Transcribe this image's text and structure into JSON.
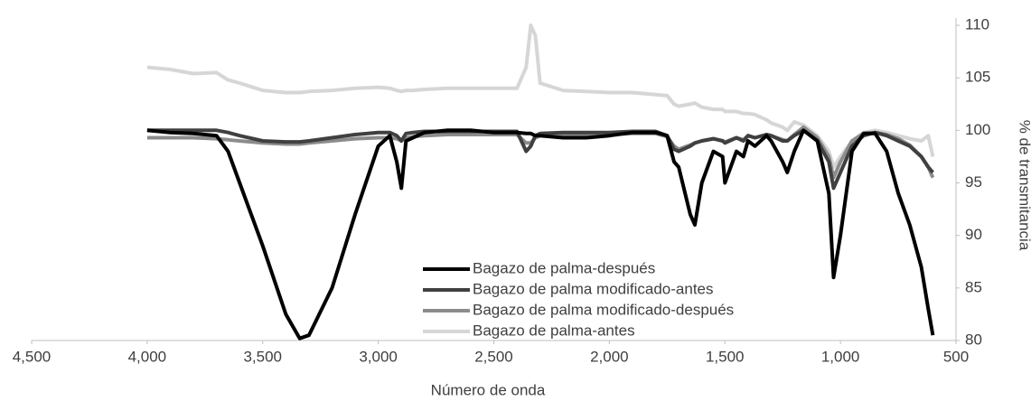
{
  "chart_data": {
    "type": "line",
    "x_label": "Número de onda",
    "y_label": "% de transmitancia",
    "x": [
      4000,
      3900,
      3800,
      3700,
      3650,
      3600,
      3500,
      3400,
      3340,
      3300,
      3200,
      3100,
      3000,
      2950,
      2920,
      2900,
      2880,
      2850,
      2800,
      2700,
      2600,
      2500,
      2400,
      2360,
      2340,
      2320,
      2300,
      2200,
      2100,
      2000,
      1900,
      1800,
      1750,
      1720,
      1700,
      1650,
      1630,
      1600,
      1550,
      1510,
      1500,
      1450,
      1420,
      1400,
      1370,
      1320,
      1300,
      1250,
      1230,
      1200,
      1160,
      1100,
      1050,
      1030,
      1000,
      950,
      900,
      850,
      800,
      750,
      700,
      650,
      620,
      600
    ],
    "series": [
      {
        "name": "Bagazo de palma-después",
        "color": "#000000",
        "values": [
          100,
          99.8,
          99.7,
          99.5,
          98,
          95,
          89,
          82.5,
          80.2,
          80.5,
          85,
          92,
          98.5,
          99.5,
          97,
          94.5,
          99,
          99.3,
          99.8,
          100,
          100,
          99.8,
          99.8,
          99.7,
          99.7,
          99.5,
          99.5,
          99.3,
          99.3,
          99.5,
          99.8,
          99.8,
          99.5,
          97,
          96.5,
          92,
          91,
          95,
          98,
          97.5,
          95,
          98,
          97.5,
          99,
          98.5,
          99.5,
          99,
          97,
          96,
          98,
          100,
          99,
          94,
          86,
          90,
          98,
          99.7,
          99.7,
          98,
          94,
          91,
          87,
          83,
          80.5
        ]
      },
      {
        "name": "Bagazo de palma modificado-antes",
        "color": "#404040",
        "values": [
          100,
          100,
          100,
          100,
          99.8,
          99.5,
          99,
          98.9,
          98.9,
          99,
          99.3,
          99.6,
          99.8,
          99.8,
          99.5,
          99,
          99.7,
          99.8,
          99.9,
          99.9,
          99.9,
          99.9,
          99.9,
          98,
          98.5,
          99.5,
          99.7,
          99.8,
          99.8,
          99.8,
          99.9,
          99.9,
          99.5,
          98.2,
          98,
          98.5,
          98.8,
          99,
          99.2,
          99,
          98.8,
          99.3,
          99,
          99.5,
          99.3,
          99.6,
          99.5,
          99,
          99,
          99.5,
          100,
          99,
          97,
          94.5,
          96,
          98.5,
          99.5,
          99.8,
          99.5,
          99,
          98.5,
          97.5,
          96.5,
          96
        ]
      },
      {
        "name": "Bagazo de palma modificado-después",
        "color": "#8c8c8c",
        "values": [
          99.3,
          99.3,
          99.3,
          99.2,
          99.1,
          99,
          98.8,
          98.7,
          98.7,
          98.8,
          99,
          99.2,
          99.3,
          99.3,
          99.2,
          99,
          99.3,
          99.4,
          99.5,
          99.6,
          99.6,
          99.6,
          99.6,
          98.8,
          98.8,
          99.3,
          99.5,
          99.5,
          99.5,
          99.6,
          99.7,
          99.7,
          99.4,
          98.5,
          98.2,
          98.6,
          98.8,
          99,
          99.2,
          99,
          98.9,
          99.3,
          99.1,
          99.5,
          99.3,
          99.6,
          99.5,
          99.1,
          99,
          99.6,
          100.3,
          99.3,
          97.5,
          95.5,
          97,
          99,
          99.7,
          99.8,
          99.6,
          99.2,
          98.6,
          97.5,
          96.5,
          95.5
        ]
      },
      {
        "name": "Bagazo de palma-antes",
        "color": "#d6d6d6",
        "values": [
          106,
          105.8,
          105.4,
          105.5,
          104.8,
          104.5,
          103.8,
          103.6,
          103.6,
          103.7,
          103.8,
          104,
          104.1,
          104,
          103.8,
          103.7,
          103.8,
          103.8,
          103.9,
          104,
          104,
          104,
          104,
          106,
          110,
          109,
          104.5,
          103.8,
          103.7,
          103.6,
          103.6,
          103.4,
          103.3,
          102.5,
          102.3,
          102.5,
          102.6,
          102.2,
          102,
          102,
          101.8,
          101.8,
          101.6,
          101.6,
          101.5,
          101,
          100.7,
          100.3,
          100,
          100.8,
          100.5,
          99.5,
          98,
          96.5,
          97.5,
          99,
          99.8,
          100,
          99.8,
          99.5,
          99.2,
          99,
          99.5,
          97.5
        ]
      }
    ],
    "xlim": [
      4500,
      500
    ],
    "xticks": [
      {
        "value": 4500,
        "label": "4,500"
      },
      {
        "value": 4000,
        "label": "4,000"
      },
      {
        "value": 3500,
        "label": "3,500"
      },
      {
        "value": 3000,
        "label": "3,000"
      },
      {
        "value": 2500,
        "label": "2,500"
      },
      {
        "value": 2000,
        "label": "2,000"
      },
      {
        "value": 1500,
        "label": "1,500"
      },
      {
        "value": 1000,
        "label": "1,000"
      },
      500
    ],
    "ylim": [
      80,
      110
    ],
    "yticks": [
      80,
      85,
      90,
      95,
      100,
      105,
      110
    ],
    "y_axis_side": "right",
    "grid": false
  }
}
